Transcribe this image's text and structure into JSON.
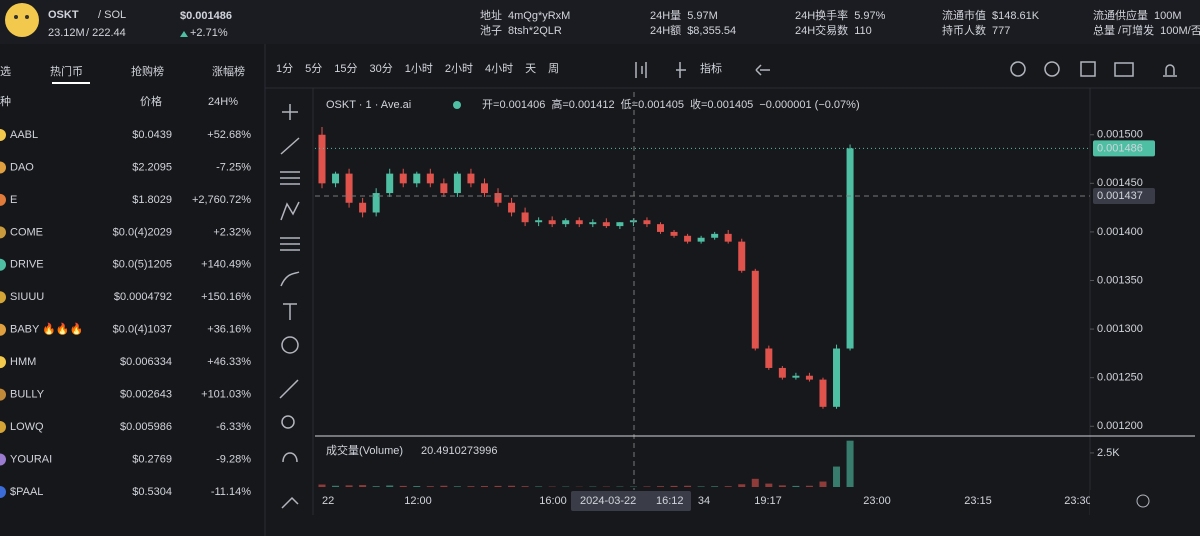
{
  "header": {
    "symbol": "OSKT",
    "pair": "/ SOL",
    "mcap": "23.12M",
    "liquidity": "/ 222.44",
    "price": "$0.001486",
    "change": "+2.71%",
    "stats": [
      {
        "label": "地址",
        "value": "4mQg*yRxM"
      },
      {
        "label": "池子",
        "value": "8tsh*2QLR"
      },
      {
        "label": "24H量",
        "value": "5.97M"
      },
      {
        "label": "24H额",
        "value": "$8,355.54"
      },
      {
        "label": "24H换手率",
        "value": "5.97%"
      },
      {
        "label": "24H交易数",
        "value": "110"
      },
      {
        "label": "流通市值",
        "value": "$148.61K"
      },
      {
        "label": "持币人数",
        "value": "777"
      },
      {
        "label": "流通供应量",
        "value": "100M"
      },
      {
        "label": "总量 /可增发",
        "value": "100M/否"
      }
    ]
  },
  "sidebar": {
    "tabs": [
      "选",
      "热门币",
      "抢购榜",
      "涨幅榜"
    ],
    "columns": [
      "种",
      "价格",
      "24H%"
    ],
    "rows": [
      [
        "AABL",
        "$0.0439",
        "+52.68%"
      ],
      [
        "DAO",
        "$2.2095",
        "-7.25%"
      ],
      [
        "E",
        "$1.8029",
        "+2,760.72%"
      ],
      [
        "COME",
        "$0.0(4)2029",
        "+2.32%"
      ],
      [
        "DRIVE",
        "$0.0(5)1205",
        "+140.49%"
      ],
      [
        "SIUUU",
        "$0.0004792",
        "+150.16%"
      ],
      [
        "BABY 🔥🔥🔥",
        "$0.0(4)1037",
        "+36.16%"
      ],
      [
        "HMM",
        "$0.006334",
        "+46.33%"
      ],
      [
        "BULLY",
        "$0.002643",
        "+101.03%"
      ],
      [
        "LOWQ",
        "$0.005986",
        "-6.33%"
      ],
      [
        "YOURAI",
        "$0.2769",
        "-9.28%"
      ],
      [
        "$PAAL",
        "$0.5304",
        "-11.14%"
      ]
    ]
  },
  "toolbar": {
    "intervals": [
      "1分",
      "5分",
      "15分",
      "30分",
      "1小时",
      "2小时",
      "4小时",
      "天",
      "周"
    ],
    "indicators": "指标"
  },
  "chart_data": {
    "type": "candlestick",
    "title": "OSKT · 1 · Ave.ai",
    "legend": [
      {
        "label": "开=",
        "value": 0.001406
      },
      {
        "label": "高=",
        "value": 0.001412
      },
      {
        "label": "低=",
        "value": 0.001405
      },
      {
        "label": "收=",
        "value": 0.001405
      }
    ],
    "legend_change": "−0.000001 (−0.07%)",
    "up_color": "#4fbfa4",
    "down_color": "#e0534d",
    "open": [
      0.0015,
      0.00145,
      0.00146,
      0.00143,
      0.00142,
      0.00144,
      0.00146,
      0.00145,
      0.00146,
      0.00145,
      0.00144,
      0.00146,
      0.00145,
      0.00144,
      0.00143,
      0.00142,
      0.00141,
      0.001412,
      0.001408,
      0.001412,
      0.001408,
      0.00141,
      0.001406,
      0.00141,
      0.001412,
      0.001408,
      0.0014,
      0.001396,
      0.00139,
      0.001394,
      0.001398,
      0.00139,
      0.00136,
      0.00128,
      0.00126,
      0.00125,
      0.001252,
      0.001248,
      0.00122,
      0.00128
    ],
    "high": [
      0.001508,
      0.001462,
      0.001465,
      0.001435,
      0.001445,
      0.001465,
      0.001465,
      0.001462,
      0.001465,
      0.001455,
      0.001462,
      0.001465,
      0.001455,
      0.001445,
      0.001435,
      0.001425,
      0.001415,
      0.001416,
      0.001414,
      0.001415,
      0.001413,
      0.001414,
      0.00141,
      0.001414,
      0.001415,
      0.00141,
      0.001402,
      0.001398,
      0.001396,
      0.0014,
      0.001402,
      0.001393,
      0.001362,
      0.001283,
      0.001262,
      0.001255,
      0.001255,
      0.00125,
      0.001284,
      0.00149
    ],
    "low": [
      0.001445,
      0.001446,
      0.001425,
      0.001415,
      0.001416,
      0.001436,
      0.001446,
      0.001446,
      0.001446,
      0.001436,
      0.001436,
      0.001446,
      0.001436,
      0.001426,
      0.001416,
      0.001406,
      0.001406,
      0.001405,
      0.001405,
      0.001405,
      0.001405,
      0.001404,
      0.001403,
      0.001406,
      0.001405,
      0.001398,
      0.001394,
      0.001388,
      0.001388,
      0.001392,
      0.001388,
      0.001358,
      0.001278,
      0.001258,
      0.001248,
      0.001248,
      0.001246,
      0.001218,
      0.001218,
      0.001278
    ],
    "close": [
      0.00145,
      0.00146,
      0.00143,
      0.00142,
      0.00144,
      0.00146,
      0.00145,
      0.00146,
      0.00145,
      0.00144,
      0.00146,
      0.00145,
      0.00144,
      0.00143,
      0.00142,
      0.00141,
      0.001412,
      0.001408,
      0.001412,
      0.001408,
      0.00141,
      0.001406,
      0.00141,
      0.001412,
      0.001408,
      0.0014,
      0.001396,
      0.00139,
      0.001394,
      0.001398,
      0.00139,
      0.00136,
      0.00128,
      0.00126,
      0.00125,
      0.001252,
      0.001248,
      0.00122,
      0.00128,
      0.001486
    ],
    "volume": [
      180,
      90,
      120,
      140,
      60,
      110,
      80,
      70,
      60,
      90,
      50,
      60,
      70,
      80,
      90,
      60,
      40,
      30,
      30,
      20,
      30,
      30,
      30,
      30,
      40,
      60,
      80,
      90,
      40,
      50,
      60,
      200,
      600,
      250,
      120,
      80,
      90,
      400,
      1500,
      3400
    ],
    "ylim": [
      0.001191,
      0.001544
    ],
    "yticks": [
      {
        "value": 0.0015,
        "label": "0.001500"
      },
      {
        "value": 0.00145,
        "label": "0.001450"
      },
      {
        "value": 0.0014,
        "label": "0.001400"
      },
      {
        "value": 0.00135,
        "label": "0.001350"
      },
      {
        "value": 0.0013,
        "label": "0.001300"
      },
      {
        "value": 0.00125,
        "label": "0.001250"
      },
      {
        "value": 0.0012,
        "label": "0.001200"
      }
    ],
    "last_price": 0.001486,
    "crosshair_price": 0.001437,
    "volume_label": "成交量(Volume)",
    "volume_value": 20.4910273996,
    "volume_ylim": [
      0,
      3450
    ],
    "volume_ticks": [
      {
        "value": 2500,
        "label": "2.5K"
      }
    ],
    "xticks": [
      "22",
      "12:00",
      "16:00",
      "34",
      "19:17",
      "23:00",
      "23:15",
      "23:30"
    ],
    "crosshair_date": "2024-03-22",
    "crosshair_time": "16:12"
  }
}
